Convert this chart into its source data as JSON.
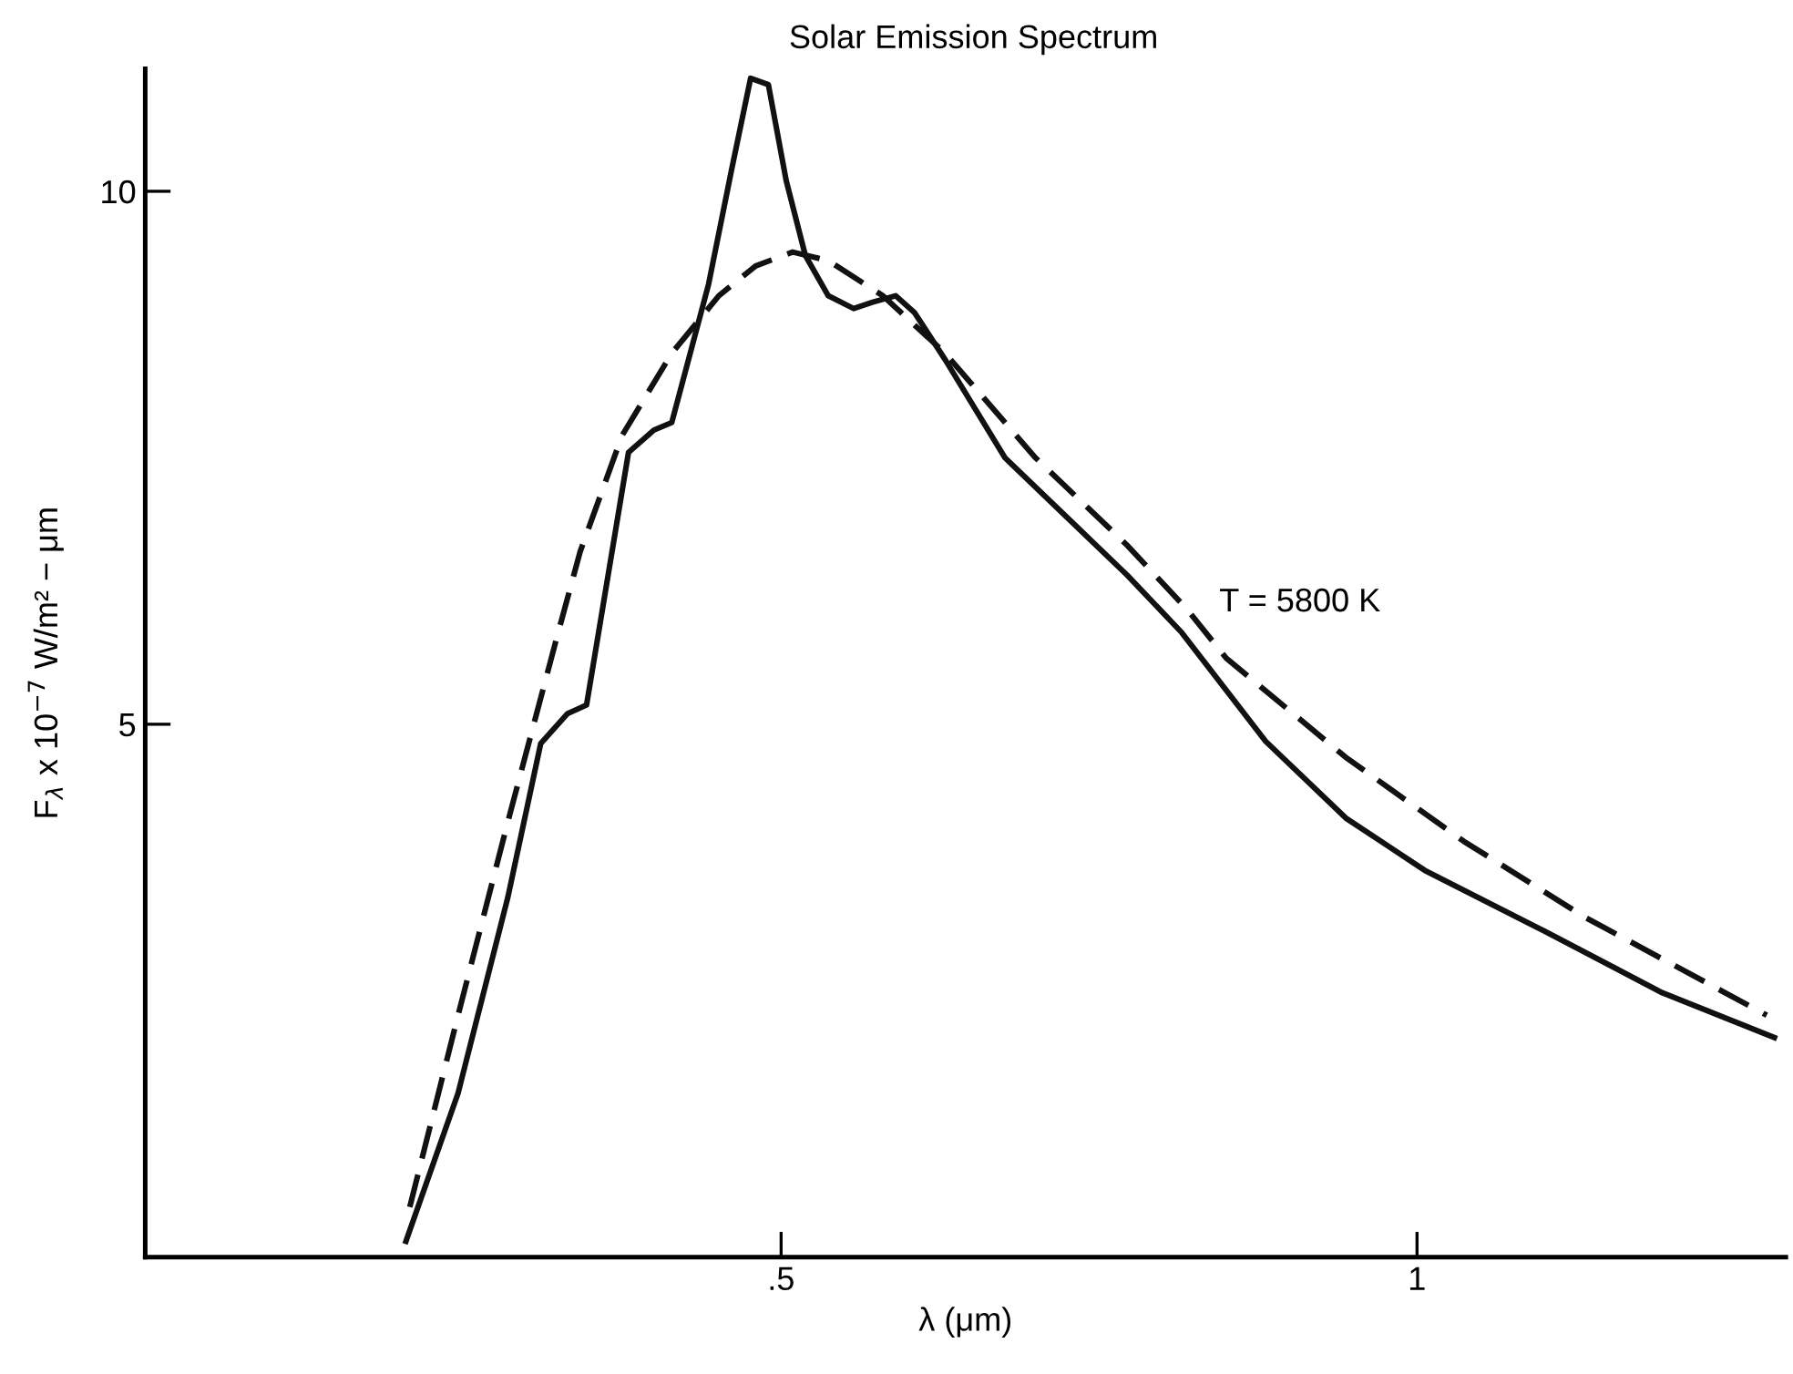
{
  "chart_data": {
    "type": "line",
    "xlabel": "λ (μm)",
    "ylabel": "F$_{λ}$ x 10$^{−7}$ W/m² − μm",
    "xlim": [
      0,
      1.29
    ],
    "ylim": [
      0,
      11.15
    ],
    "xticks": [
      {
        "value": 0.5,
        "label": ".5"
      },
      1
    ],
    "yticks": [
      5,
      10
    ],
    "grid": false,
    "series": [
      {
        "color": "#111111",
        "line_style": "solid",
        "x": [
          0.205,
          0.246,
          0.285,
          0.311,
          0.332,
          0.347,
          0.38,
          0.4,
          0.414,
          0.443,
          0.461,
          0.476,
          0.49,
          0.504,
          0.519,
          0.537,
          0.557,
          0.572,
          0.59,
          0.605,
          0.629,
          0.676,
          0.724,
          0.772,
          0.815,
          0.881,
          0.944,
          1.006,
          1.1,
          1.193,
          1.281
        ],
        "values": [
          0.15,
          1.54,
          3.37,
          4.82,
          5.1,
          5.18,
          7.55,
          7.76,
          7.83,
          9.13,
          10.2,
          11.06,
          11.0,
          10.1,
          9.4,
          9.02,
          8.9,
          8.96,
          9.02,
          8.86,
          8.42,
          7.5,
          6.95,
          6.4,
          5.86,
          4.84,
          4.12,
          3.63,
          3.06,
          2.48,
          2.06
        ]
      },
      {
        "color": "#111111",
        "line_style": "dashed",
        "x": [
          0.208,
          0.246,
          0.285,
          0.324,
          0.342,
          0.375,
          0.414,
          0.451,
          0.48,
          0.509,
          0.537,
          0.58,
          0.629,
          0.7,
          0.772,
          0.819,
          0.85,
          0.944,
          1.037,
          1.132,
          1.275
        ],
        "values": [
          0.47,
          2.27,
          4.08,
          5.83,
          6.62,
          7.71,
          8.48,
          9.02,
          9.3,
          9.43,
          9.35,
          9.02,
          8.48,
          7.5,
          6.68,
          6.08,
          5.62,
          4.69,
          3.9,
          3.19,
          2.27
        ]
      }
    ],
    "annotations": [
      "Solar Emission Spectrum",
      "T = 5800 K"
    ]
  }
}
